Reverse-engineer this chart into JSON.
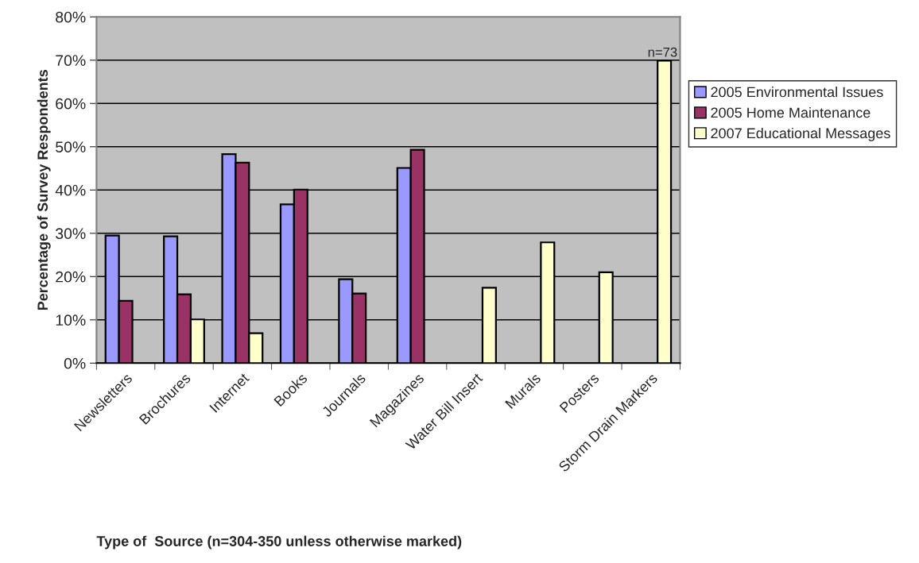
{
  "chart_data": {
    "type": "bar",
    "xlabel": "Type of  Source (n=304-350 unless otherwise marked)",
    "ylabel": "Percentage of Survey Respondents",
    "categories": [
      "Newsletters",
      "Brochures",
      "Internet",
      "Books",
      "Journals",
      "Magazines",
      "Water Bill Insert",
      "Murals",
      "Posters",
      "Storm Drain Markers"
    ],
    "series": [
      {
        "name": "2005 Environmental Issues",
        "color": "#9999ff",
        "values": [
          29.5,
          29.3,
          48.3,
          36.7,
          19.4,
          45.1,
          null,
          null,
          null,
          null
        ]
      },
      {
        "name": "2005 Home Maintenance",
        "color": "#993366",
        "values": [
          14.4,
          15.9,
          46.3,
          40.1,
          16.1,
          49.3,
          null,
          null,
          null,
          null
        ]
      },
      {
        "name": "2007 Educational Messages",
        "color": "#ffffcc",
        "values": [
          null,
          10.1,
          6.9,
          null,
          null,
          null,
          17.4,
          27.9,
          21.0,
          69.9
        ]
      }
    ],
    "annotations": [
      "n=73"
    ],
    "ylim": [
      0,
      80
    ],
    "yticks": [
      {
        "value": 0,
        "label": "0%"
      },
      {
        "value": 10,
        "label": "10%"
      },
      {
        "value": 20,
        "label": "20%"
      },
      {
        "value": 30,
        "label": "30%"
      },
      {
        "value": 40,
        "label": "40%"
      },
      {
        "value": 50,
        "label": "50%"
      },
      {
        "value": 60,
        "label": "60%"
      },
      {
        "value": 70,
        "label": "70%"
      },
      {
        "value": 80,
        "label": "80%"
      }
    ],
    "grid": "y",
    "legend": "right"
  }
}
